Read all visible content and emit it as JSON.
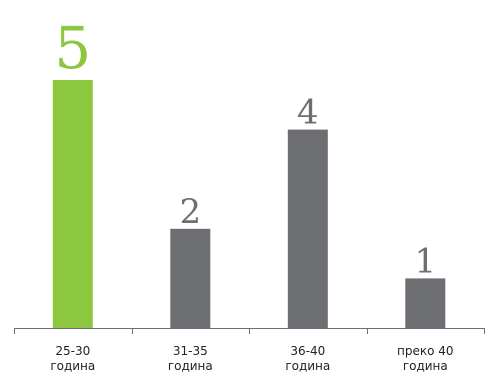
{
  "chart_data": {
    "type": "bar",
    "categories": [
      [
        "25-30",
        "година"
      ],
      [
        "31-35",
        "година"
      ],
      [
        "36-40",
        "година"
      ],
      [
        "преко 40",
        "година"
      ]
    ],
    "values": [
      5,
      2,
      4,
      1
    ],
    "value_labels": [
      "5",
      "2",
      "4",
      "1"
    ],
    "title": "",
    "xlabel": "",
    "ylabel": "",
    "ylim": [
      0,
      5
    ],
    "grid": false,
    "legend": "none"
  },
  "colors": {
    "highlight": "#8dc63f",
    "default": "#6d6e71",
    "axis": "#6d6e71",
    "highlight_label": "#8dc63f",
    "default_label": "#6d6e71"
  }
}
